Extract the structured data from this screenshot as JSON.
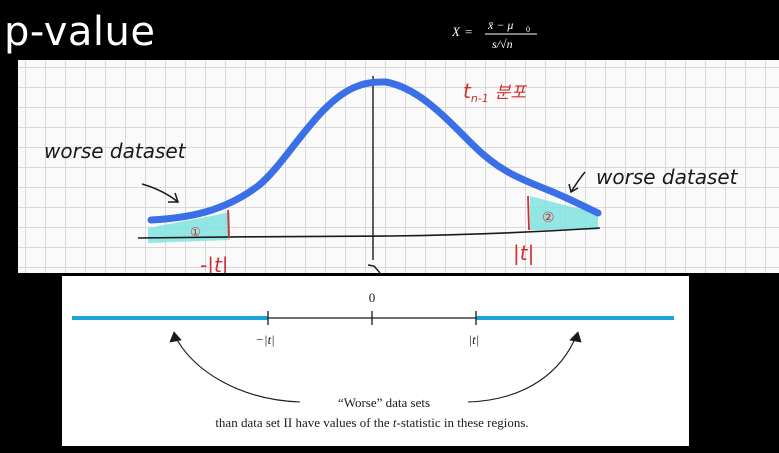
{
  "slide": {
    "title": "p-value"
  },
  "formula": {
    "lhs": "X",
    "equals": "=",
    "numerator": "x̄ − μ",
    "numerator_sub": "0",
    "denominator": "s/√n"
  },
  "sketch": {
    "left_note": "worse dataset",
    "right_note": "worse dataset",
    "curve_note": "t",
    "curve_note_sub": "n-1",
    "curve_note_suffix": "분포",
    "left_region_mark": "①",
    "right_region_mark": "②",
    "left_tick_label": "-|t|",
    "right_tick_label": "|t|",
    "colors": {
      "curve": "#3a6fe8",
      "shade": "#7fe3df",
      "ink": "#1a1a1a",
      "red_ink": "#d03030"
    }
  },
  "number_line": {
    "zero_label": "0",
    "neg_label": "−|t|",
    "pos_label": "|t|",
    "caption_line1": "“Worse” data sets",
    "caption_line2_a": "than data set II have values of the ",
    "caption_line2_italic": "t",
    "caption_line2_b": "-statistic in these regions.",
    "colors": {
      "tail": "#1ba3dc",
      "line": "#1a1a1a"
    }
  }
}
